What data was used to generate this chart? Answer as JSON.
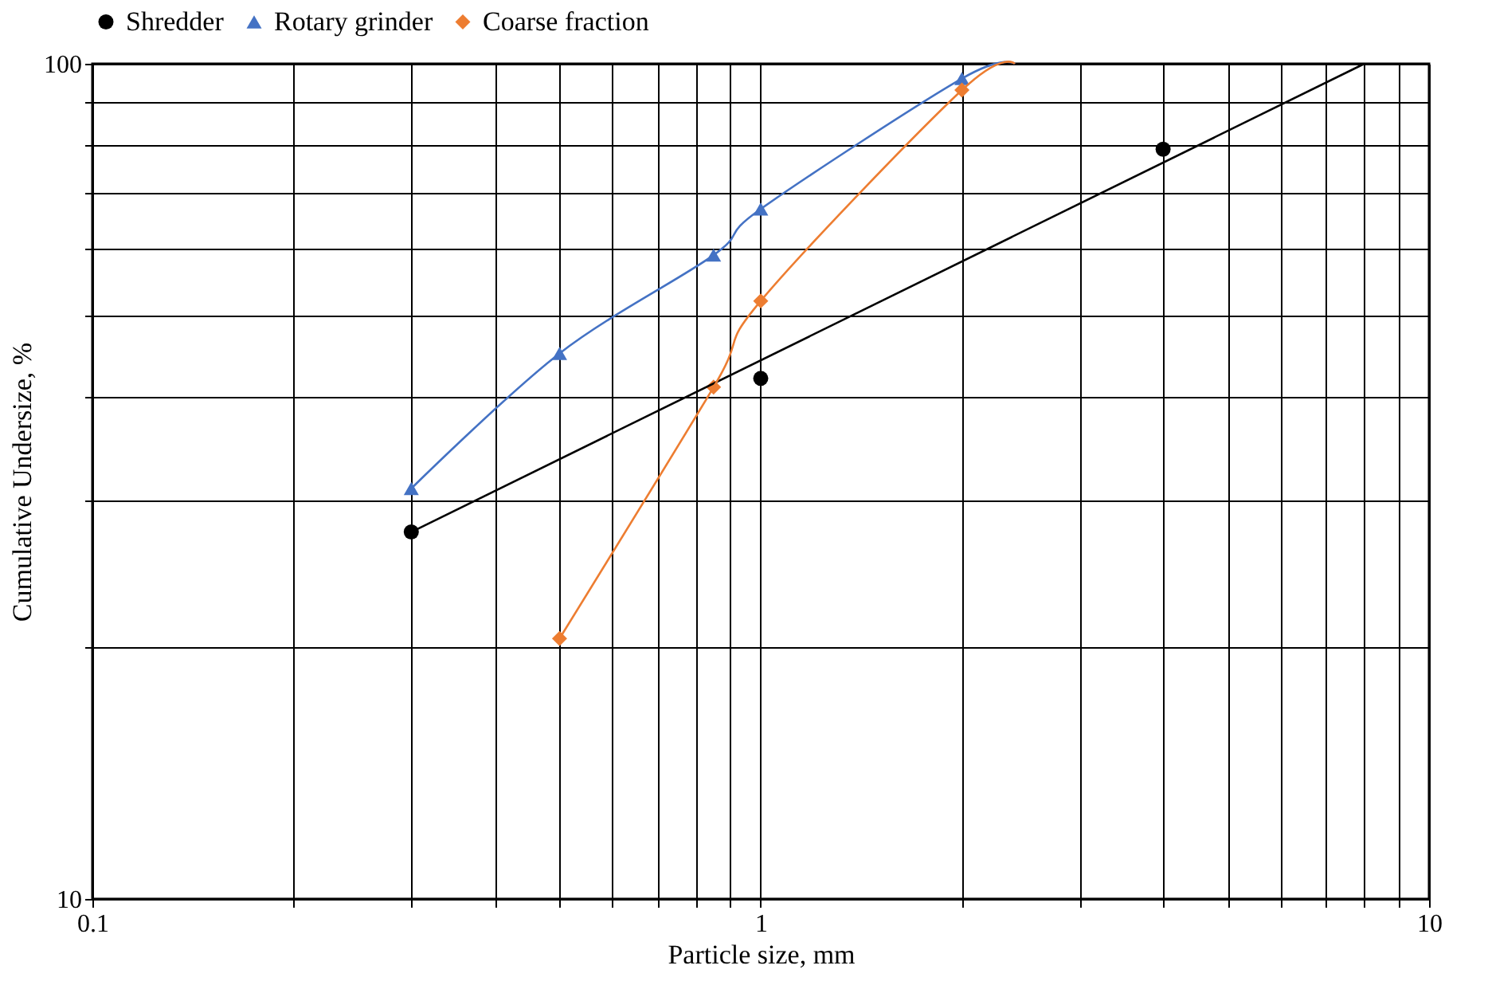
{
  "chart_data": {
    "type": "scatter",
    "xlabel": "Particle size, mm",
    "ylabel": "Cumulative  Undersize, %",
    "log": "xy",
    "grid": true,
    "legend": "top",
    "xlim": [
      0.1,
      10
    ],
    "ylim": [
      10,
      100
    ],
    "xticks": [
      0.1,
      {
        "value": 0.2,
        "label": null
      },
      {
        "value": 0.3,
        "label": null
      },
      {
        "value": 0.4,
        "label": null
      },
      {
        "value": 0.5,
        "label": null
      },
      {
        "value": 0.6,
        "label": null
      },
      {
        "value": 0.7,
        "label": null
      },
      {
        "value": 0.8,
        "label": null
      },
      {
        "value": 0.9,
        "label": null
      },
      1,
      {
        "value": 2,
        "label": null
      },
      {
        "value": 3,
        "label": null
      },
      {
        "value": 4,
        "label": null
      },
      {
        "value": 5,
        "label": null
      },
      {
        "value": 6,
        "label": null
      },
      {
        "value": 7,
        "label": null
      },
      {
        "value": 8,
        "label": null
      },
      {
        "value": 9,
        "label": null
      },
      10
    ],
    "yticks": [
      10,
      {
        "value": 20,
        "label": null
      },
      {
        "value": 30,
        "label": null
      },
      {
        "value": 40,
        "label": null
      },
      {
        "value": 50,
        "label": null
      },
      {
        "value": 60,
        "label": null
      },
      {
        "value": 70,
        "label": null
      },
      {
        "value": 80,
        "label": null
      },
      {
        "value": 90,
        "label": null
      },
      100
    ],
    "series": [
      {
        "name": "Shredder",
        "marker": "circle",
        "color": "#000000",
        "x": [
          0.3,
          1,
          4
        ],
        "values": [
          27.5,
          42,
          79
        ]
      },
      {
        "name": "Rotary grinder",
        "marker": "triangle",
        "color": "#4472c4",
        "x": [
          0.3,
          0.5,
          0.85,
          1,
          2
        ],
        "values": [
          31,
          45,
          59,
          67,
          96
        ]
      },
      {
        "name": "Coarse fraction",
        "marker": "diamond",
        "color": "#ed7d31",
        "x": [
          0.5,
          0.85,
          1,
          2
        ],
        "values": [
          20.5,
          41,
          52,
          93
        ]
      },
      {
        "type": "line",
        "color": "#000000",
        "marker": "none",
        "x": [
          0.3,
          8
        ],
        "values": [
          27.5,
          100
        ]
      },
      {
        "type": "line",
        "color": "#4472c4",
        "marker": "none",
        "x": [
          0.3,
          0.5,
          0.85,
          1,
          2,
          2.4
        ],
        "values": [
          31,
          45,
          59,
          67,
          96,
          100
        ]
      },
      {
        "type": "line",
        "color": "#ed7d31",
        "marker": "none",
        "x": [
          0.5,
          0.85,
          1,
          2,
          2.4
        ],
        "values": [
          20.5,
          41,
          52,
          93,
          100
        ]
      }
    ]
  }
}
